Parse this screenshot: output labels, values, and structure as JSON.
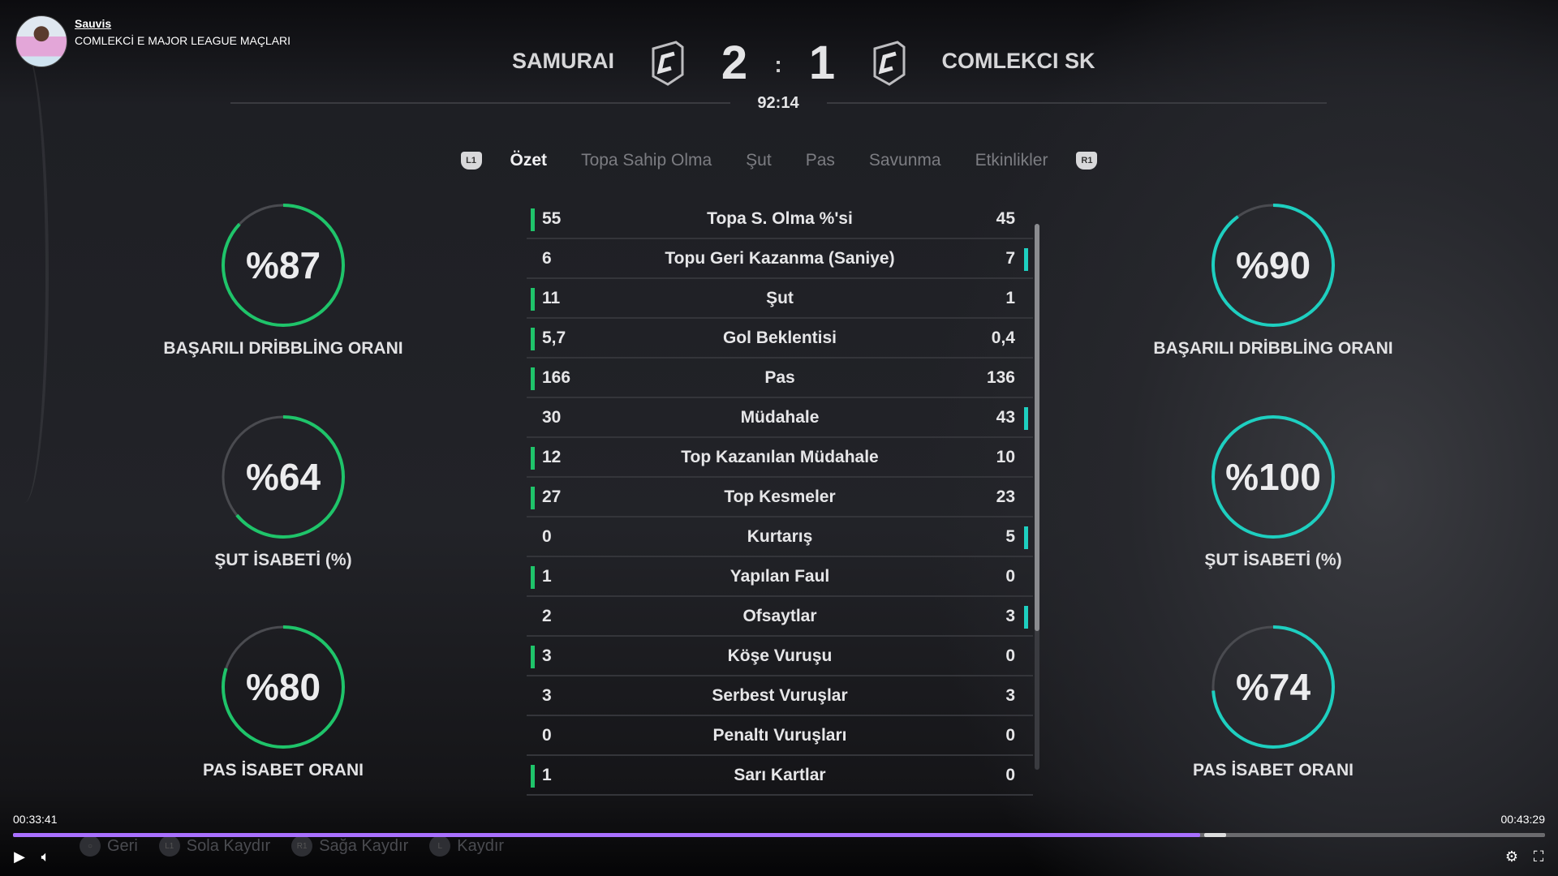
{
  "channel": {
    "name": "Sauvis",
    "subtitle": "COMLEKCİ E MAJOR LEAGUE MAÇLARI"
  },
  "match": {
    "home_team": "SAMURAI",
    "away_team": "COMLEKCI SK",
    "home_score": "2",
    "away_score": "1",
    "separator": ":",
    "clock": "92:14"
  },
  "tabs": {
    "left_key": "L1",
    "right_key": "R1",
    "items": [
      "Özet",
      "Topa Sahip Olma",
      "Şut",
      "Pas",
      "Savunma",
      "Etkinlikler"
    ],
    "active": 0
  },
  "stats": [
    {
      "name": "Topa S. Olma %'si",
      "home": "55",
      "away": "45",
      "leader": "home"
    },
    {
      "name": "Topu Geri Kazanma (Saniye)",
      "home": "6",
      "away": "7",
      "leader": "away"
    },
    {
      "name": "Şut",
      "home": "11",
      "away": "1",
      "leader": "home"
    },
    {
      "name": "Gol Beklentisi",
      "home": "5,7",
      "away": "0,4",
      "leader": "home"
    },
    {
      "name": "Pas",
      "home": "166",
      "away": "136",
      "leader": "home"
    },
    {
      "name": "Müdahale",
      "home": "30",
      "away": "43",
      "leader": "away"
    },
    {
      "name": "Top Kazanılan Müdahale",
      "home": "12",
      "away": "10",
      "leader": "home"
    },
    {
      "name": "Top Kesmeler",
      "home": "27",
      "away": "23",
      "leader": "home"
    },
    {
      "name": "Kurtarış",
      "home": "0",
      "away": "5",
      "leader": "away"
    },
    {
      "name": "Yapılan Faul",
      "home": "1",
      "away": "0",
      "leader": "home"
    },
    {
      "name": "Ofsaytlar",
      "home": "2",
      "away": "3",
      "leader": "away"
    },
    {
      "name": "Köşe Vuruşu",
      "home": "3",
      "away": "0",
      "leader": "home"
    },
    {
      "name": "Serbest Vuruşlar",
      "home": "3",
      "away": "3",
      "leader": "none"
    },
    {
      "name": "Penaltı Vuruşları",
      "home": "0",
      "away": "0",
      "leader": "none"
    },
    {
      "name": "Sarı Kartlar",
      "home": "1",
      "away": "0",
      "leader": "home"
    }
  ],
  "home_rings": [
    {
      "value": "%87",
      "percent": 87,
      "label": "BAŞARILI DRİBBLİNG ORANI"
    },
    {
      "value": "%64",
      "percent": 64,
      "label": "ŞUT İSABETİ (%)"
    },
    {
      "value": "%80",
      "percent": 80,
      "label": "PAS İSABET ORANI"
    }
  ],
  "away_rings": [
    {
      "value": "%90",
      "percent": 90,
      "label": "BAŞARILI DRİBBLİNG ORANI"
    },
    {
      "value": "%100",
      "percent": 100,
      "label": "ŞUT İSABETİ (%)"
    },
    {
      "value": "%74",
      "percent": 74,
      "label": "PAS İSABET ORANI"
    }
  ],
  "colors": {
    "home": "#1fc46a",
    "away": "#1ecfc0",
    "progress": "#a970ff"
  },
  "hints": [
    {
      "key": "○",
      "label": "Geri"
    },
    {
      "key": "L1",
      "label": "Sola Kaydır"
    },
    {
      "key": "R1",
      "label": "Sağa Kaydır"
    },
    {
      "key": "L",
      "label": "Kaydır"
    }
  ],
  "player": {
    "elapsed": "00:33:41",
    "total": "00:43:29",
    "progress_percent": 77.5,
    "buffered_percent": 79.2
  }
}
